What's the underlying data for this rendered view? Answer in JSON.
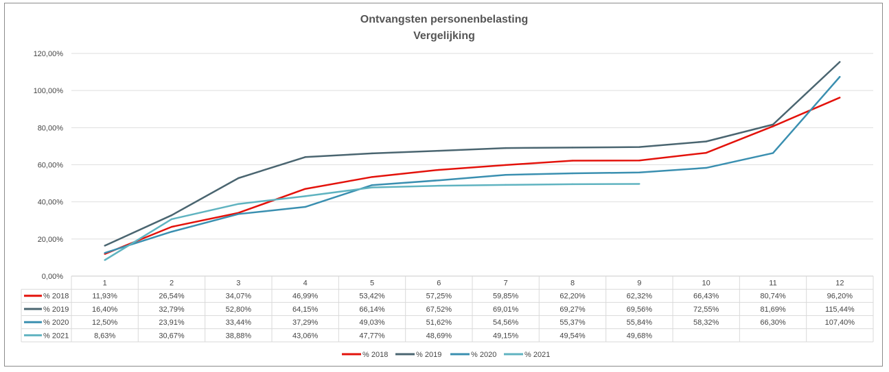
{
  "chart_data": {
    "type": "line",
    "title": "Ontvangsten personenbelasting",
    "subtitle": "Vergelijking",
    "categories": [
      "1",
      "2",
      "3",
      "4",
      "5",
      "6",
      "7",
      "8",
      "9",
      "10",
      "11",
      "12"
    ],
    "ylim": [
      0,
      120
    ],
    "ytick_labels": [
      "0,00%",
      "20,00%",
      "40,00%",
      "60,00%",
      "80,00%",
      "100,00%",
      "120,00%"
    ],
    "grid": true,
    "legend_position": "bottom",
    "series": [
      {
        "name": "% 2018",
        "color": "#e3120b",
        "values": [
          11.93,
          26.54,
          34.07,
          46.99,
          53.42,
          57.25,
          59.85,
          62.2,
          62.32,
          66.43,
          80.74,
          96.2
        ],
        "labels": [
          "11,93%",
          "26,54%",
          "34,07%",
          "46,99%",
          "53,42%",
          "57,25%",
          "59,85%",
          "62,20%",
          "62,32%",
          "66,43%",
          "80,74%",
          "96,20%"
        ]
      },
      {
        "name": "% 2019",
        "color": "#4a6570",
        "values": [
          16.4,
          32.79,
          52.8,
          64.15,
          66.14,
          67.52,
          69.01,
          69.27,
          69.56,
          72.55,
          81.69,
          115.44
        ],
        "labels": [
          "16,40%",
          "32,79%",
          "52,80%",
          "64,15%",
          "66,14%",
          "67,52%",
          "69,01%",
          "69,27%",
          "69,56%",
          "72,55%",
          "81,69%",
          "115,44%"
        ]
      },
      {
        "name": "% 2020",
        "color": "#3a8fb0",
        "values": [
          12.5,
          23.91,
          33.44,
          37.29,
          49.03,
          51.62,
          54.56,
          55.37,
          55.84,
          58.32,
          66.3,
          107.4
        ],
        "labels": [
          "12,50%",
          "23,91%",
          "33,44%",
          "37,29%",
          "49,03%",
          "51,62%",
          "54,56%",
          "55,37%",
          "55,84%",
          "58,32%",
          "66,30%",
          "107,40%"
        ]
      },
      {
        "name": "% 2021",
        "color": "#5fb3c0",
        "values": [
          8.63,
          30.67,
          38.88,
          43.06,
          47.77,
          48.69,
          49.15,
          49.54,
          49.68,
          null,
          null,
          null
        ],
        "labels": [
          "8,63%",
          "30,67%",
          "38,88%",
          "43,06%",
          "47,77%",
          "48,69%",
          "49,15%",
          "49,54%",
          "49,68%",
          "",
          "",
          ""
        ]
      }
    ]
  }
}
